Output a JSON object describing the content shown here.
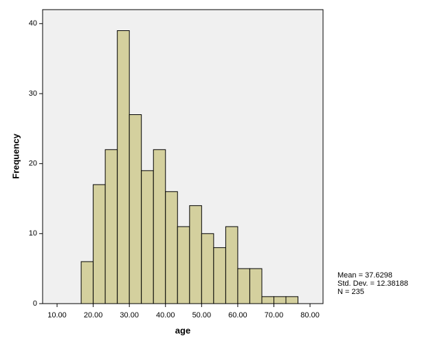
{
  "chart_data": {
    "type": "histogram",
    "x_label": "age",
    "y_label": "Frequency",
    "bins": [
      16.67,
      20,
      23.33,
      26.67,
      30,
      33.33,
      36.67,
      40,
      43.33,
      46.67,
      50,
      53.33,
      56.67,
      60,
      63.33,
      66.67,
      70,
      73.33,
      76.67
    ],
    "counts": [
      6,
      17,
      22,
      39,
      27,
      19,
      22,
      16,
      11,
      14,
      10,
      8,
      11,
      5,
      5,
      1,
      1,
      1
    ],
    "color": "#d4d09e",
    "background": "#f0f0f0",
    "grid": false,
    "xlim": [
      6,
      83.6
    ],
    "ylim": [
      0,
      42
    ],
    "xticks": [
      {
        "value": 10,
        "label": "10.00"
      },
      {
        "value": 20,
        "label": "20.00"
      },
      {
        "value": 30,
        "label": "30.00"
      },
      {
        "value": 40,
        "label": "40.00"
      },
      {
        "value": 50,
        "label": "50.00"
      },
      {
        "value": 60,
        "label": "60.00"
      },
      {
        "value": 70,
        "label": "70.00"
      },
      {
        "value": 80,
        "label": "80.00"
      }
    ],
    "yticks": [
      0,
      10,
      20,
      30,
      40
    ],
    "annotations": [
      "Mean = 37.6298",
      "Std. Dev. = 12.38188",
      "N = 235"
    ]
  }
}
